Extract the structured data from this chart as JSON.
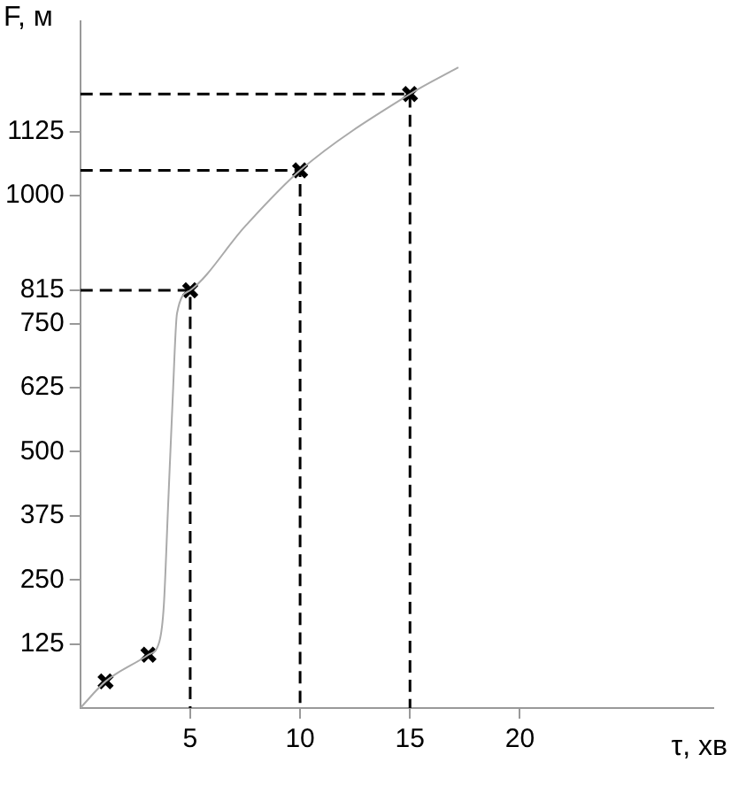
{
  "chart_data": {
    "type": "line",
    "xlabel": "τ, хв",
    "ylabel": "F, м",
    "xlim": [
      0,
      28.8
    ],
    "xticks": [
      5,
      10,
      15,
      20
    ],
    "ylim": [
      0,
      1340
    ],
    "yticks": [
      125,
      250,
      375,
      500,
      625,
      750,
      815,
      1000,
      1125
    ],
    "grid": false,
    "legend": false,
    "series": [
      {
        "color": "#aaaaaa",
        "marker": "none",
        "line_style": "solid",
        "x": [
          0,
          1.15,
          3.1,
          3.6,
          3.8,
          4.0,
          4.2,
          4.4,
          5,
          7.5,
          10,
          15,
          17.2
        ],
        "values": [
          0,
          52,
          104,
          130,
          200,
          400,
          600,
          770,
          815,
          940,
          1049,
          1198,
          1250
        ]
      },
      {
        "type": "scatter",
        "color": "#000000",
        "marker": "cross",
        "x": [
          1.15,
          3.1,
          5,
          10,
          15
        ],
        "values": [
          52,
          104,
          815,
          1049,
          1198
        ]
      },
      {
        "type": "line",
        "color": "#000000",
        "marker": "none",
        "line_style": "dashed",
        "x": [
          0,
          5,
          5
        ],
        "values": [
          815,
          815,
          0
        ]
      },
      {
        "type": "line",
        "color": "#000000",
        "marker": "none",
        "line_style": "dashed",
        "x": [
          0,
          10,
          10
        ],
        "values": [
          1049,
          1049,
          0
        ]
      },
      {
        "type": "line",
        "color": "#000000",
        "marker": "none",
        "line_style": "dashed",
        "x": [
          0,
          15,
          15
        ],
        "values": [
          1198,
          1198,
          0
        ]
      }
    ]
  }
}
